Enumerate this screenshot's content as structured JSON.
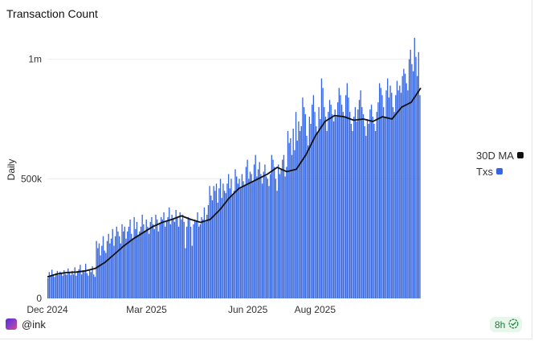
{
  "title": "Transaction Count",
  "footer": {
    "user": "@ink",
    "freshness": "8h"
  },
  "icons": {
    "logo": "ink-logo-icon",
    "badge": "check-circle-icon"
  },
  "colors": {
    "bars": "#3566e0",
    "ma": "#111111",
    "badge_text": "#1b7f3b",
    "badge_bg": "#e8f6ec"
  },
  "chart_data": {
    "type": "bar",
    "x_range": [
      "2024-12-01",
      "2025-11-05"
    ],
    "ylim": [
      0,
      1100000
    ],
    "ylabel": "Daily",
    "xlabel": "",
    "y_ticks": [
      {
        "value": 0,
        "label": "0"
      },
      {
        "value": 500000,
        "label": "500k"
      },
      {
        "value": 1000000,
        "label": "1m"
      }
    ],
    "x_ticks": [
      {
        "date": "2024-12-01",
        "label": "Dec 2024"
      },
      {
        "date": "2025-03-01",
        "label": "Mar 2025"
      },
      {
        "date": "2025-06-01",
        "label": "Jun 2025"
      },
      {
        "date": "2025-08-01",
        "label": "Aug 2025"
      }
    ],
    "legend": {
      "position": "right",
      "entries": [
        {
          "name": "30D MA",
          "color": "#111111"
        },
        {
          "name": "Txs",
          "color": "#3566e0"
        }
      ]
    },
    "grid": "horizontal",
    "series": [
      {
        "name": "Txs",
        "type": "bar",
        "values": [
          85000,
          110000,
          95000,
          120000,
          100000,
          90000,
          105000,
          115000,
          98000,
          112000,
          108000,
          95000,
          118000,
          102000,
          99000,
          125000,
          110000,
          97000,
          115000,
          100000,
          130000,
          95000,
          108000,
          122000,
          140000,
          100000,
          118000,
          110000,
          145000,
          105000,
          95000,
          120000,
          110000,
          135000,
          100000,
          90000,
          240000,
          210000,
          230000,
          180000,
          220000,
          260000,
          200000,
          190000,
          240000,
          270000,
          230000,
          250000,
          290000,
          220000,
          260000,
          300000,
          280000,
          260000,
          230000,
          310000,
          280000,
          300000,
          250000,
          280000,
          300000,
          330000,
          270000,
          250000,
          340000,
          290000,
          320000,
          260000,
          280000,
          300000,
          350000,
          310000,
          280000,
          330000,
          300000,
          270000,
          320000,
          340000,
          310000,
          290000,
          350000,
          330000,
          280000,
          310000,
          340000,
          330000,
          360000,
          300000,
          320000,
          340000,
          380000,
          310000,
          350000,
          330000,
          320000,
          370000,
          340000,
          300000,
          360000,
          330000,
          350000,
          320000,
          210000,
          300000,
          340000,
          330000,
          300000,
          220000,
          310000,
          330000,
          320000,
          360000,
          300000,
          310000,
          340000,
          330000,
          380000,
          320000,
          350000,
          390000,
          470000,
          430000,
          410000,
          470000,
          450000,
          480000,
          400000,
          460000,
          500000,
          420000,
          480000,
          450000,
          440000,
          480000,
          520000,
          460000,
          500000,
          430000,
          450000,
          540000,
          510000,
          480000,
          500000,
          460000,
          520000,
          490000,
          470000,
          550000,
          580000,
          500000,
          530000,
          520000,
          490000,
          560000,
          600000,
          510000,
          540000,
          570000,
          520000,
          480000,
          530000,
          560000,
          510000,
          500000,
          470000,
          520000,
          600000,
          580000,
          550000,
          500000,
          450000,
          560000,
          520000,
          540000,
          580000,
          600000,
          510000,
          550000,
          700000,
          650000,
          670000,
          600000,
          710000,
          620000,
          780000,
          660000,
          740000,
          700000,
          720000,
          840000,
          800000,
          770000,
          680000,
          640000,
          760000,
          730000,
          810000,
          850000,
          780000,
          720000,
          690000,
          800000,
          750000,
          920000,
          880000,
          800000,
          760000,
          700000,
          780000,
          830000,
          810000,
          770000,
          740000,
          790000,
          760000,
          820000,
          880000,
          850000,
          810000,
          780000,
          760000,
          850000,
          900000,
          840000,
          780000,
          730000,
          700000,
          760000,
          800000,
          740000,
          790000,
          830000,
          870000,
          800000,
          770000,
          720000,
          680000,
          750000,
          730000,
          790000,
          810000,
          760000,
          730000,
          700000,
          780000,
          820000,
          900000,
          880000,
          850000,
          800000,
          760000,
          870000,
          920000,
          840000,
          890000,
          860000,
          800000,
          780000,
          850000,
          910000,
          870000,
          890000,
          860000,
          930000,
          960000,
          940000,
          900000,
          870000,
          1000000,
          1040000,
          980000,
          950000,
          1090000,
          1010000,
          930000,
          1030000,
          850000
        ]
      },
      {
        "name": "30D MA",
        "type": "line",
        "values": [
          90000,
          102000,
          108000,
          110000,
          115000,
          125000,
          150000,
          185000,
          220000,
          250000,
          275000,
          300000,
          318000,
          330000,
          345000,
          330000,
          318000,
          330000,
          370000,
          420000,
          460000,
          480000,
          500000,
          520000,
          548000,
          530000,
          540000,
          600000,
          680000,
          740000,
          765000,
          760000,
          745000,
          750000,
          740000,
          760000,
          750000,
          800000,
          820000,
          880000
        ]
      }
    ]
  }
}
